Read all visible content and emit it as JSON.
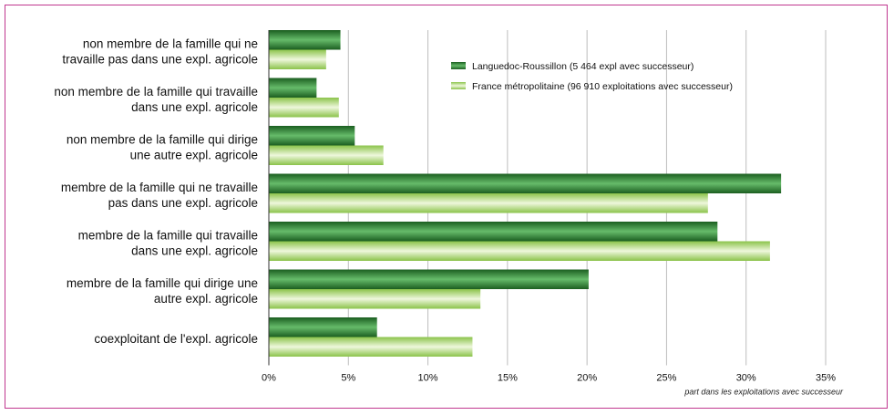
{
  "chart_data": {
    "type": "bar",
    "orientation": "horizontal",
    "categories": [
      [
        "non membre de la famille qui ne",
        "travaille pas dans une expl. agricole"
      ],
      [
        "non membre de la famille qui travaille",
        "dans une expl. agricole"
      ],
      [
        "non membre de la famille qui dirige",
        "une autre expl. agricole"
      ],
      [
        "membre de la famille qui ne travaille",
        "pas dans une expl. agricole"
      ],
      [
        "membre de la famille qui travaille",
        "dans une expl. agricole"
      ],
      [
        "membre de la famille qui dirige une",
        "autre expl. agricole"
      ],
      [
        "coexploitant de l'expl. agricole"
      ]
    ],
    "series": [
      {
        "name": "Languedoc-Roussillon (5 464 expl avec successeur)",
        "color": "#2e7d32",
        "values": [
          4.5,
          3.0,
          5.4,
          32.2,
          28.2,
          20.1,
          6.8
        ]
      },
      {
        "name": "France métropolitaine (96 910 exploitations avec successeur)",
        "color": "#9ccc65",
        "values": [
          3.6,
          4.4,
          7.2,
          27.6,
          31.5,
          13.3,
          12.8
        ]
      }
    ],
    "xlim": [
      0,
      35
    ],
    "x_ticks": [
      "0%",
      "5%",
      "10%",
      "15%",
      "20%",
      "25%",
      "30%",
      "35%"
    ],
    "xlabel": "part dans les exploitations avec successeur",
    "ylabel": "",
    "grid": "vertical",
    "legend_position": "top-right"
  }
}
